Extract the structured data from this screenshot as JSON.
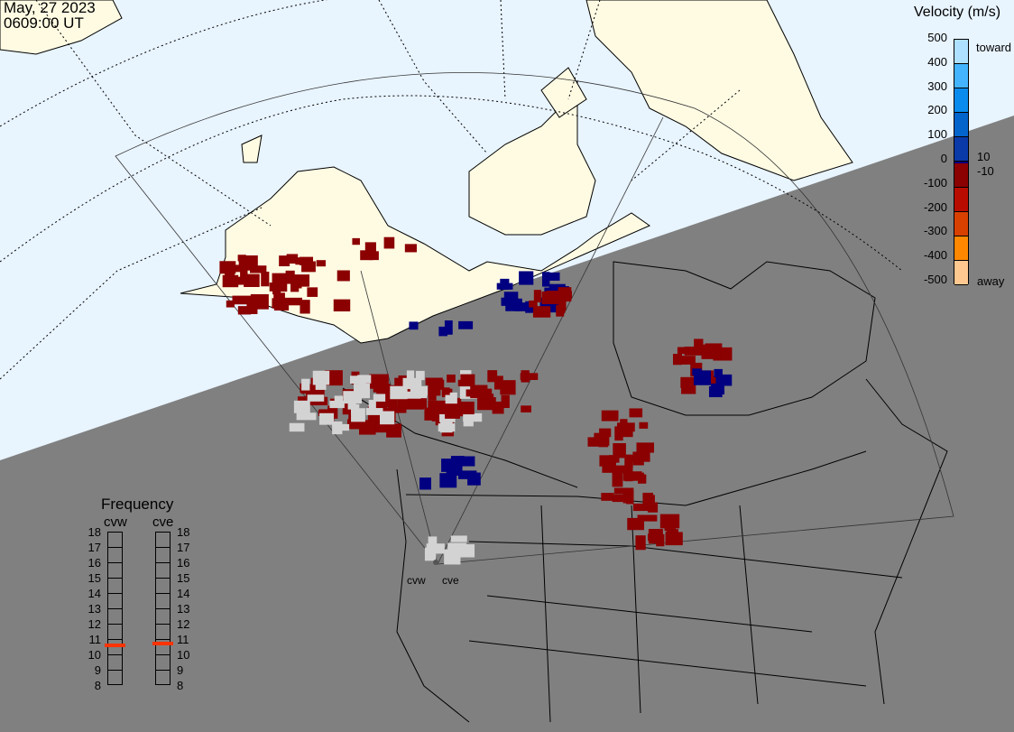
{
  "header": {
    "date": "May, 27 2023",
    "time": "0609:00 UT"
  },
  "colors": {
    "day": "#e8f4fe",
    "night": "#808080",
    "land_day": "#fffbe3",
    "ground_scatter": "#d3d3d3",
    "away_low": "#8b0000",
    "toward_low": "#000080"
  },
  "velocity_legend": {
    "title": "Velocity (m/s)",
    "ticks": [
      "500",
      "400",
      "300",
      "200",
      "100",
      "0",
      "-100",
      "-200",
      "-300",
      "-400",
      "-500"
    ],
    "toward_label": "toward",
    "away_label": "away",
    "small_pos": "10",
    "small_neg": "-10",
    "colors": [
      "#aee0ff",
      "#44b4ff",
      "#0a8cee",
      "#0364cc",
      "#0a3aa8",
      "#000080",
      "#8b0000",
      "#b80c00",
      "#d84000",
      "#ff8800",
      "#ffc890"
    ]
  },
  "frequency": {
    "title": "Frequency",
    "unit_note": "",
    "radars": [
      {
        "name": "cvw",
        "value_mhz": 10.6
      },
      {
        "name": "cve",
        "value_mhz": 10.7
      }
    ],
    "ticks": [
      "18",
      "17",
      "16",
      "15",
      "14",
      "13",
      "12",
      "11",
      "10",
      "9",
      "8"
    ],
    "range": [
      8,
      18
    ],
    "marker_color": "#ff3300"
  },
  "radar_sites": [
    {
      "name": "cvw"
    },
    {
      "name": "cve"
    }
  ]
}
